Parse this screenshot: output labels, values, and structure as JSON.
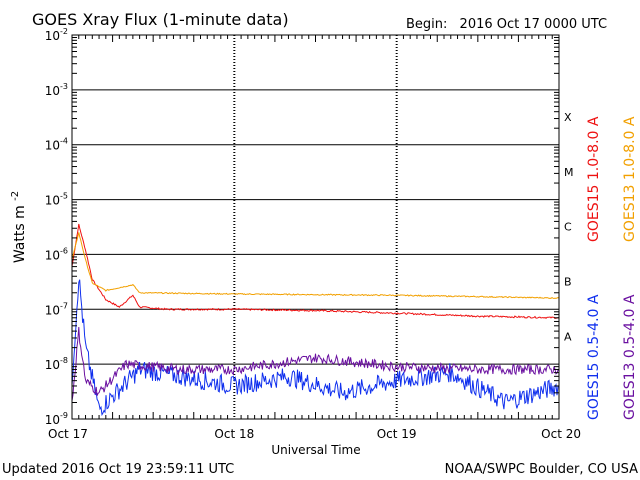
{
  "header": {
    "title": "GOES Xray Flux (1-minute data)",
    "begin_label": "Begin:",
    "begin_value": "2016 Oct 17 0000 UTC"
  },
  "footer": {
    "updated": "Updated 2016 Oct 19 23:59:11 UTC",
    "credit": "NOAA/SWPC Boulder, CO USA"
  },
  "chart_data": {
    "type": "line",
    "title": "GOES Xray Flux (1-minute data)",
    "xlabel": "Universal Time",
    "ylabel_base": "Watts m",
    "ylabel_exp": "-2",
    "y_scale": "log",
    "ylim": [
      1e-09,
      0.01
    ],
    "xlim": [
      "2016-10-17T00:00Z",
      "2016-10-20T00:00Z"
    ],
    "x_ticks": [
      "Oct 17",
      "Oct 18",
      "Oct 19",
      "Oct 20"
    ],
    "y_ticks": [
      {
        "base": "10",
        "exp": "-2",
        "value": 0.01
      },
      {
        "base": "10",
        "exp": "-3",
        "value": 0.001
      },
      {
        "base": "10",
        "exp": "-4",
        "value": 0.0001
      },
      {
        "base": "10",
        "exp": "-5",
        "value": 1e-05
      },
      {
        "base": "10",
        "exp": "-6",
        "value": 1e-06
      },
      {
        "base": "10",
        "exp": "-7",
        "value": 1e-07
      },
      {
        "base": "10",
        "exp": "-8",
        "value": 1e-08
      },
      {
        "base": "10",
        "exp": "-9",
        "value": 1e-09
      }
    ],
    "flare_classes": [
      {
        "label": "X",
        "value": 0.00032
      },
      {
        "label": "M",
        "value": 3.2e-05
      },
      {
        "label": "C",
        "value": 3.2e-06
      },
      {
        "label": "B",
        "value": 3.2e-07
      },
      {
        "label": "A",
        "value": 3.2e-08
      }
    ],
    "grid": true,
    "legend_position": "right, vertical",
    "series": [
      {
        "name": "GOES15 1.0-8.0 A",
        "color": "#ee1111",
        "points": [
          [
            "2016-10-17T00:00Z",
            6e-07
          ],
          [
            "2016-10-17T01:00Z",
            3.5e-06
          ],
          [
            "2016-10-17T02:00Z",
            1.2e-06
          ],
          [
            "2016-10-17T03:00Z",
            3.5e-07
          ],
          [
            "2016-10-17T05:00Z",
            1.5e-07
          ],
          [
            "2016-10-17T07:00Z",
            1.1e-07
          ],
          [
            "2016-10-17T09:00Z",
            1.8e-07
          ],
          [
            "2016-10-17T10:00Z",
            1.1e-07
          ],
          [
            "2016-10-17T14:00Z",
            1e-07
          ],
          [
            "2016-10-18T00:00Z",
            1e-07
          ],
          [
            "2016-10-18T12:00Z",
            9.5e-08
          ],
          [
            "2016-10-19T00:00Z",
            8.5e-08
          ],
          [
            "2016-10-19T12:00Z",
            7.5e-08
          ],
          [
            "2016-10-20T00:00Z",
            7e-08
          ]
        ]
      },
      {
        "name": "GOES13 1.0-8.0 A",
        "color": "#f2a000",
        "points": [
          [
            "2016-10-17T00:00Z",
            8e-07
          ],
          [
            "2016-10-17T01:00Z",
            2.5e-06
          ],
          [
            "2016-10-17T02:00Z",
            8e-07
          ],
          [
            "2016-10-17T03:00Z",
            3e-07
          ],
          [
            "2016-10-17T05:00Z",
            2.2e-07
          ],
          [
            "2016-10-17T09:00Z",
            2.8e-07
          ],
          [
            "2016-10-17T10:00Z",
            2e-07
          ],
          [
            "2016-10-18T00:00Z",
            1.9e-07
          ],
          [
            "2016-10-18T12:00Z",
            1.85e-07
          ],
          [
            "2016-10-19T00:00Z",
            1.8e-07
          ],
          [
            "2016-10-19T12:00Z",
            1.7e-07
          ],
          [
            "2016-10-20T00:00Z",
            1.6e-07
          ]
        ]
      },
      {
        "name": "GOES15 0.5-4.0 A",
        "color": "#1030ee",
        "points": [
          [
            "2016-10-17T00:00Z",
            5e-09
          ],
          [
            "2016-10-17T01:00Z",
            4e-07
          ],
          [
            "2016-10-17T02:00Z",
            2e-08
          ],
          [
            "2016-10-17T04:00Z",
            1.5e-09
          ],
          [
            "2016-10-17T10:00Z",
            8e-09
          ],
          [
            "2016-10-17T16:00Z",
            6e-09
          ],
          [
            "2016-10-18T00:00Z",
            4e-09
          ],
          [
            "2016-10-18T08:00Z",
            6e-09
          ],
          [
            "2016-10-18T16:00Z",
            3e-09
          ],
          [
            "2016-10-19T00:00Z",
            5e-09
          ],
          [
            "2016-10-19T08:00Z",
            7e-09
          ],
          [
            "2016-10-19T16:00Z",
            2e-09
          ],
          [
            "2016-10-20T00:00Z",
            4e-09
          ]
        ]
      },
      {
        "name": "GOES13 0.5-4.0 A",
        "color": "#6a10a0",
        "points": [
          [
            "2016-10-17T00:00Z",
            2e-09
          ],
          [
            "2016-10-17T01:00Z",
            4e-08
          ],
          [
            "2016-10-17T02:00Z",
            5e-09
          ],
          [
            "2016-10-17T04:00Z",
            3e-09
          ],
          [
            "2016-10-17T08:00Z",
            1e-08
          ],
          [
            "2016-10-17T16:00Z",
            8e-09
          ],
          [
            "2016-10-18T00:00Z",
            8e-09
          ],
          [
            "2016-10-18T12:00Z",
            1.3e-08
          ],
          [
            "2016-10-19T00:00Z",
            9e-09
          ],
          [
            "2016-10-19T12:00Z",
            8e-09
          ],
          [
            "2016-10-20T00:00Z",
            8e-09
          ]
        ]
      }
    ]
  }
}
